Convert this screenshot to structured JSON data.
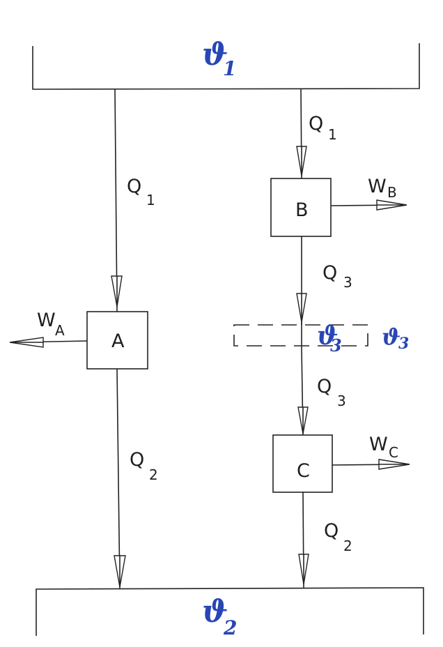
{
  "reservoirs": {
    "top": {
      "label": "ϑ",
      "subscript": "1"
    },
    "bottom": {
      "label": "ϑ",
      "subscript": "2"
    }
  },
  "engines": {
    "a": {
      "label": "A",
      "work": "W",
      "work_sub": "A"
    },
    "b": {
      "label": "B",
      "work": "W",
      "work_sub": "B"
    },
    "c": {
      "label": "C",
      "work": "W",
      "work_sub": "C"
    }
  },
  "intermediate": {
    "handwritten_label": "ϑ",
    "handwritten_sub": "3",
    "side_label": "ϑ",
    "side_sub": "3"
  },
  "heat_flows": {
    "left_upper": {
      "q": "Q",
      "sub": "1"
    },
    "left_lower": {
      "q": "Q",
      "sub": "2"
    },
    "right_top": {
      "q": "Q",
      "sub": "1"
    },
    "right_mid_upper": {
      "q": "Q",
      "sub": "3"
    },
    "right_mid_lower": {
      "q": "Q",
      "sub": "3"
    },
    "right_bottom": {
      "q": "Q",
      "sub": "2"
    }
  },
  "colors": {
    "ink": "#222222",
    "handwriting": "#2846b4"
  }
}
